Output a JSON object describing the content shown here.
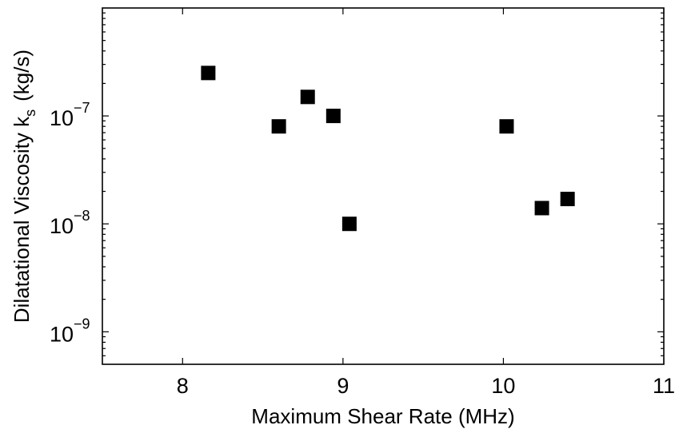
{
  "chart_data": {
    "type": "scatter",
    "xlabel": "Maximum Shear Rate (MHz)",
    "ylabel": "Dilatational Viscosity k",
    "ylabel_sub": "s",
    "ylabel_unit": "(kg/s)",
    "xlim": [
      7.5,
      11
    ],
    "ylim": [
      5e-10,
      1e-06
    ],
    "yscale": "log",
    "grid": false,
    "marker": "square",
    "marker_color": "#000000",
    "x_ticks": [
      {
        "value": 8,
        "label": "8"
      },
      {
        "value": 9,
        "label": "9"
      },
      {
        "value": 10,
        "label": "10"
      },
      {
        "value": 11,
        "label": "11"
      }
    ],
    "y_ticks": [
      {
        "value": 1e-09,
        "base": "10",
        "exp": "−9"
      },
      {
        "value": 1e-08,
        "base": "10",
        "exp": "−8"
      },
      {
        "value": 1e-07,
        "base": "10",
        "exp": "−7"
      }
    ],
    "points": [
      {
        "x": 8.16,
        "y": 2.5e-07
      },
      {
        "x": 8.6,
        "y": 8e-08
      },
      {
        "x": 8.78,
        "y": 1.5e-07
      },
      {
        "x": 8.94,
        "y": 1e-07
      },
      {
        "x": 9.04,
        "y": 1e-08
      },
      {
        "x": 10.02,
        "y": 8e-08
      },
      {
        "x": 10.24,
        "y": 1.4e-08
      },
      {
        "x": 10.4,
        "y": 1.7e-08
      }
    ]
  }
}
